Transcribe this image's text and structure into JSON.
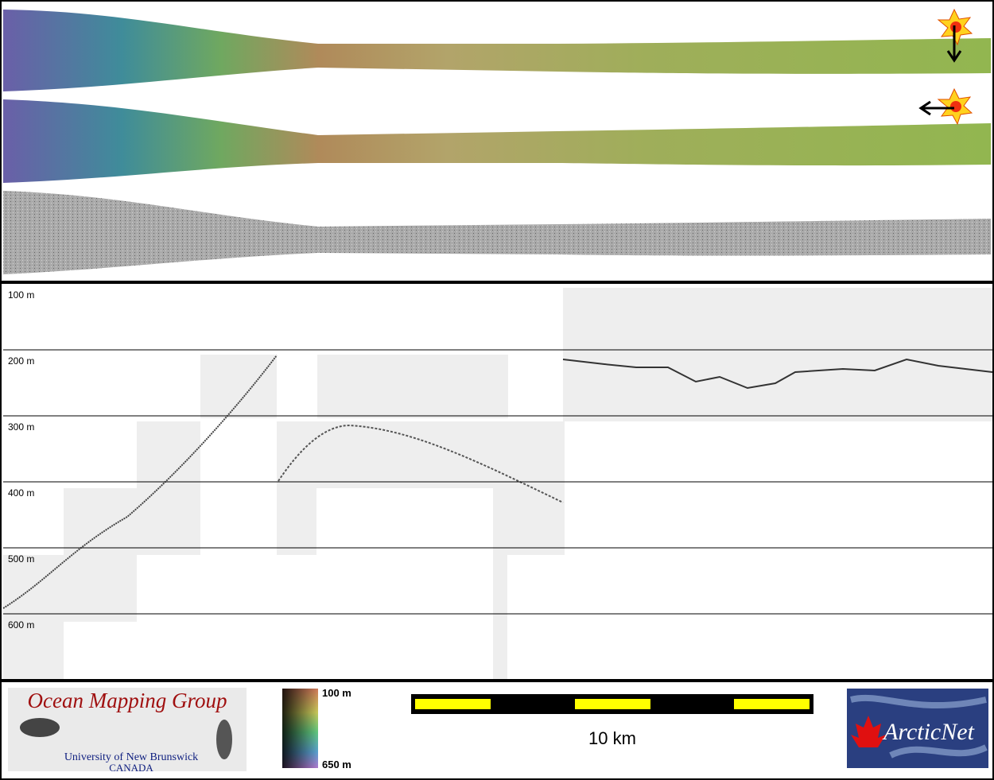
{
  "depth_labels": [
    "100 m",
    "200 m",
    "300 m",
    "400 m",
    "500 m",
    "600 m"
  ],
  "colorbar": {
    "top_label": "100 m",
    "bottom_label": "650 m"
  },
  "scale_bar": {
    "label": "10 km"
  },
  "logos": {
    "omg_title": "Ocean Mapping Group",
    "omg_university": "University of New Brunswick",
    "omg_country": "CANADA",
    "arcticnet": "ArcticNet"
  }
}
